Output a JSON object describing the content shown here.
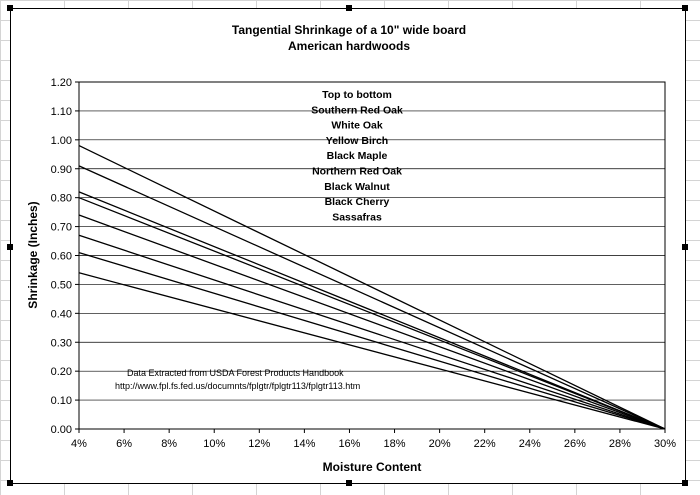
{
  "chart_data": {
    "type": "line",
    "title": "Tangential Shrinkage of a 10\" wide board",
    "subtitle": "American hardwoods",
    "xlabel": "Moisture Content",
    "ylabel": "Shrinkage (Inches)",
    "x_ticks": [
      "4%",
      "6%",
      "8%",
      "10%",
      "12%",
      "14%",
      "16%",
      "18%",
      "20%",
      "22%",
      "24%",
      "26%",
      "28%",
      "30%"
    ],
    "y_ticks": [
      "0.00",
      "0.10",
      "0.20",
      "0.30",
      "0.40",
      "0.50",
      "0.60",
      "0.70",
      "0.80",
      "0.90",
      "1.00",
      "1.10",
      "1.20"
    ],
    "xlim": [
      4,
      30
    ],
    "ylim": [
      0,
      1.2
    ],
    "grid": true,
    "legend_lines": [
      "Top to bottom",
      "Southern Red Oak",
      "White Oak",
      "Yellow Birch",
      "Black Maple",
      "Northern Red Oak",
      "Black Walnut",
      "Black Cherry",
      "Sassafras"
    ],
    "series": [
      {
        "name": "Southern Red Oak",
        "x": [
          4,
          30
        ],
        "y": [
          0.98,
          0.0
        ]
      },
      {
        "name": "White Oak",
        "x": [
          4,
          30
        ],
        "y": [
          0.91,
          0.0
        ]
      },
      {
        "name": "Yellow Birch",
        "x": [
          4,
          30
        ],
        "y": [
          0.82,
          0.0
        ]
      },
      {
        "name": "Black Maple",
        "x": [
          4,
          30
        ],
        "y": [
          0.8,
          0.0
        ]
      },
      {
        "name": "Northern Red Oak",
        "x": [
          4,
          30
        ],
        "y": [
          0.74,
          0.0
        ]
      },
      {
        "name": "Black Walnut",
        "x": [
          4,
          30
        ],
        "y": [
          0.67,
          0.0
        ]
      },
      {
        "name": "Black Cherry",
        "x": [
          4,
          30
        ],
        "y": [
          0.61,
          0.0
        ]
      },
      {
        "name": "Sassafras",
        "x": [
          4,
          30
        ],
        "y": [
          0.54,
          0.0
        ]
      }
    ],
    "annotation": [
      "Data Extracted from USDA Forest Products Handbook",
      "http://www.fpl.fs.fed.us/documnts/fplgtr/fplgtr113/fplgtr113.htm"
    ],
    "line_color": "#000000",
    "grid_color": "#000000"
  }
}
